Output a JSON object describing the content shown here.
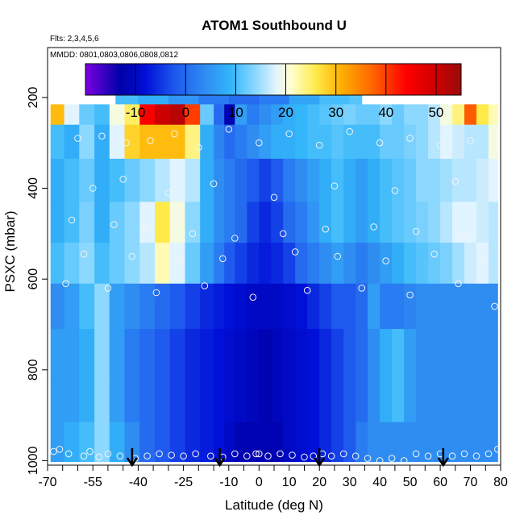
{
  "chart_data": {
    "type": "heatmap",
    "title": "ATOM1 Southbound U",
    "annotations": [
      "Flts: 2,3,4,5,6",
      "MMDD: 0801,0803,0806,0808,0812"
    ],
    "xlabel": "Latitude (deg N)",
    "ylabel": "PSXC (mbar)",
    "xlim": [
      -70,
      80
    ],
    "ylim": [
      1010,
      90
    ],
    "x_ticks": [
      -70,
      -55,
      -40,
      -25,
      -10,
      0,
      10,
      20,
      30,
      40,
      50,
      60,
      70,
      80
    ],
    "x_minor_ticks": [
      -65,
      -60,
      -50,
      -45,
      -35,
      -30,
      -20,
      -15,
      -5,
      5,
      15,
      25,
      35,
      45,
      55,
      65,
      75
    ],
    "y_ticks": [
      200,
      400,
      600,
      800,
      1000
    ],
    "colorbar": {
      "range": [
        -20,
        55
      ],
      "ticks": [
        -10,
        0,
        10,
        20,
        30,
        40,
        50
      ],
      "colors": [
        "#7B00E0",
        "#0000A8",
        "#0010D8",
        "#1E5AEE",
        "#2F8DF2",
        "#33B6FA",
        "#8CD8FF",
        "#E2F4FF",
        "#FFFFD0",
        "#FFEA4A",
        "#FFB000",
        "#FF6A00",
        "#FF0000",
        "#CC0000",
        "#9B0B0B"
      ],
      "stops": [
        -20,
        -13,
        -8,
        -2,
        4,
        9,
        14,
        18,
        21,
        26,
        31,
        37,
        44,
        50,
        55
      ]
    },
    "series": [
      {
        "x": [
          -50,
          -45,
          -35,
          -25,
          -15,
          -5,
          5,
          15,
          25,
          35
        ],
        "y": [
          200,
          200,
          200,
          200,
          200,
          200,
          200,
          200,
          200,
          200
        ],
        "values": [
          9,
          10,
          8,
          5,
          2,
          0,
          2,
          7,
          10,
          11
        ]
      },
      {
        "x": [
          -67,
          -62,
          -57,
          -52,
          -47,
          -42,
          -37,
          -32,
          -27,
          -22,
          -17,
          -13,
          -10,
          -6,
          -2,
          2,
          6,
          10,
          14,
          18,
          22,
          26,
          30,
          34,
          38,
          42,
          46,
          50,
          54,
          58,
          62,
          66,
          70,
          74,
          78
        ],
        "y": [
          230,
          230,
          230,
          230,
          230,
          230,
          230,
          230,
          230,
          230,
          230,
          230,
          230,
          230,
          230,
          230,
          230,
          230,
          230,
          230,
          230,
          230,
          230,
          230,
          230,
          230,
          230,
          230,
          230,
          230,
          230,
          230,
          230,
          230,
          230
        ],
        "values": [
          30,
          18,
          12,
          10,
          20,
          25,
          45,
          50,
          52,
          40,
          12,
          0,
          -12,
          6,
          2,
          4,
          6,
          8,
          9,
          10,
          11,
          12,
          13,
          12,
          12,
          14,
          12,
          14,
          14,
          16,
          20,
          24,
          38,
          26,
          22
        ]
      },
      {
        "x": [
          -67,
          -62,
          -57,
          -52,
          -47,
          -42,
          -37,
          -32,
          -27,
          -22,
          -17,
          -13,
          -10,
          -6,
          -2,
          2,
          6,
          10,
          14,
          18,
          22,
          26,
          30,
          34,
          38,
          42,
          46,
          50,
          54,
          58,
          62,
          66,
          70,
          74,
          78
        ],
        "y": [
          290,
          290,
          290,
          290,
          290,
          290,
          290,
          290,
          290,
          290,
          290,
          290,
          290,
          290,
          290,
          290,
          290,
          290,
          290,
          290,
          290,
          290,
          290,
          290,
          290,
          290,
          290,
          290,
          290,
          290,
          290,
          290,
          290,
          290,
          290
        ],
        "values": [
          10,
          8,
          14,
          8,
          18,
          28,
          30,
          30,
          30,
          24,
          8,
          3,
          0,
          2,
          4,
          6,
          8,
          8,
          9,
          10,
          10,
          11,
          10,
          10,
          10,
          12,
          12,
          13,
          14,
          16,
          18,
          17,
          16,
          16,
          20
        ]
      },
      {
        "x": [
          -67,
          -62,
          -57,
          -52,
          -47,
          -42,
          -37,
          -32,
          -27,
          -22,
          -17,
          -13,
          -10,
          -6,
          -2,
          2,
          6,
          10,
          14,
          18,
          22,
          26,
          30,
          34,
          38,
          42,
          46,
          50,
          54,
          58,
          62,
          66,
          70,
          74,
          78
        ],
        "y": [
          380,
          380,
          380,
          380,
          380,
          380,
          380,
          380,
          380,
          380,
          380,
          380,
          380,
          380,
          380,
          380,
          380,
          380,
          380,
          380,
          380,
          380,
          380,
          380,
          380,
          380,
          380,
          380,
          380,
          380,
          380,
          380,
          380,
          380,
          380
        ],
        "values": [
          8,
          10,
          12,
          8,
          10,
          12,
          14,
          16,
          18,
          16,
          8,
          4,
          2,
          0,
          -2,
          -4,
          -2,
          2,
          4,
          6,
          8,
          10,
          8,
          6,
          8,
          10,
          11,
          12,
          14,
          14,
          15,
          16,
          16,
          17,
          18
        ]
      },
      {
        "x": [
          -67,
          -62,
          -57,
          -52,
          -47,
          -42,
          -37,
          -32,
          -27,
          -22,
          -17,
          -13,
          -10,
          -6,
          -2,
          2,
          6,
          10,
          14,
          18,
          22,
          26,
          30,
          34,
          38,
          42,
          46,
          50,
          54,
          58,
          62,
          66,
          70,
          74,
          78
        ],
        "y": [
          480,
          480,
          480,
          480,
          480,
          480,
          480,
          480,
          480,
          480,
          480,
          480,
          480,
          480,
          480,
          480,
          480,
          480,
          480,
          480,
          480,
          480,
          480,
          480,
          480,
          480,
          480,
          480,
          480,
          480,
          480,
          480,
          480,
          480,
          480
        ],
        "values": [
          8,
          10,
          13,
          8,
          12,
          14,
          18,
          26,
          20,
          14,
          8,
          4,
          2,
          0,
          -4,
          -6,
          -4,
          0,
          2,
          5,
          8,
          10,
          8,
          6,
          8,
          10,
          11,
          12,
          13,
          14,
          16,
          18,
          18,
          17,
          16
        ]
      },
      {
        "x": [
          -67,
          -62,
          -57,
          -52,
          -47,
          -42,
          -37,
          -32,
          -27,
          -22,
          -17,
          -13,
          -10,
          -6,
          -2,
          2,
          6,
          10,
          14,
          18,
          22,
          26,
          30,
          34,
          38,
          42,
          46,
          50,
          54,
          58,
          62,
          66,
          70,
          74,
          78
        ],
        "y": [
          560,
          560,
          560,
          560,
          560,
          560,
          560,
          560,
          560,
          560,
          560,
          560,
          560,
          560,
          560,
          560,
          560,
          560,
          560,
          560,
          560,
          560,
          560,
          560,
          560,
          560,
          560,
          560,
          560,
          560,
          560,
          560,
          560,
          560,
          560
        ],
        "values": [
          10,
          12,
          14,
          10,
          12,
          14,
          16,
          22,
          18,
          12,
          6,
          2,
          -2,
          -4,
          -6,
          -7,
          -6,
          -4,
          0,
          2,
          4,
          6,
          4,
          2,
          4,
          6,
          8,
          10,
          11,
          12,
          13,
          15,
          17,
          18,
          16
        ]
      },
      {
        "x": [
          -67,
          -62,
          -57,
          -52,
          -47,
          -42,
          -37,
          -32,
          -27,
          -22,
          -17,
          -13,
          -10,
          -6,
          -2,
          2,
          6,
          10,
          14,
          18,
          22,
          26,
          30,
          34,
          38,
          42,
          46,
          50,
          54,
          58,
          62,
          66,
          70,
          74,
          78
        ],
        "y": [
          660,
          660,
          660,
          660,
          660,
          660,
          660,
          660,
          660,
          660,
          660,
          660,
          660,
          660,
          660,
          660,
          660,
          660,
          660,
          660,
          660,
          660,
          660,
          660,
          660,
          660,
          660,
          660,
          660,
          660,
          660,
          660,
          660,
          660,
          660
        ],
        "values": [
          4,
          6,
          10,
          14,
          6,
          4,
          2,
          0,
          -2,
          -4,
          -6,
          -7,
          -8,
          -9,
          -10,
          -10,
          -10,
          -9,
          -8,
          -6,
          -4,
          -2,
          -2,
          0,
          6,
          2,
          2,
          3,
          4,
          4,
          4,
          4,
          4,
          4,
          4
        ]
      },
      {
        "x": [
          -67,
          -62,
          -57,
          -52,
          -47,
          -42,
          -37,
          -32,
          -27,
          -22,
          -17,
          -13,
          -10,
          -6,
          -2,
          2,
          6,
          10,
          14,
          18,
          22,
          26,
          30,
          34,
          38,
          42,
          46,
          50,
          54,
          58,
          62,
          66,
          70,
          74,
          78
        ],
        "y": [
          760,
          760,
          760,
          760,
          760,
          760,
          760,
          760,
          760,
          760,
          760,
          760,
          760,
          760,
          760,
          760,
          760,
          760,
          760,
          760,
          760,
          760,
          760,
          760,
          760,
          760,
          760,
          760,
          760,
          760,
          760,
          760,
          760,
          760,
          760
        ],
        "values": [
          6,
          6,
          8,
          14,
          6,
          2,
          0,
          -2,
          -4,
          -6,
          -7,
          -8,
          -9,
          -10,
          -11,
          -12,
          -11,
          -10,
          -9,
          -8,
          -6,
          -4,
          -2,
          0,
          4,
          8,
          10,
          6,
          4,
          4,
          4,
          4,
          4,
          4,
          4
        ]
      },
      {
        "x": [
          -67,
          -62,
          -57,
          -52,
          -47,
          -42,
          -37,
          -32,
          -27,
          -22,
          -17,
          -13,
          -10,
          -6,
          -2,
          2,
          6,
          10,
          14,
          18,
          22,
          26,
          30,
          34,
          38,
          42,
          46,
          50,
          54,
          58,
          62,
          66,
          70,
          74,
          78
        ],
        "y": [
          870,
          870,
          870,
          870,
          870,
          870,
          870,
          870,
          870,
          870,
          870,
          870,
          870,
          870,
          870,
          870,
          870,
          870,
          870,
          870,
          870,
          870,
          870,
          870,
          870,
          870,
          870,
          870,
          870,
          870,
          870,
          870,
          870,
          870,
          870
        ],
        "values": [
          6,
          6,
          8,
          14,
          6,
          2,
          0,
          -2,
          -4,
          -6,
          -7,
          -8,
          -9,
          -10,
          -11,
          -12,
          -11,
          -10,
          -9,
          -8,
          -6,
          -4,
          -2,
          0,
          4,
          8,
          10,
          6,
          4,
          4,
          4,
          4,
          4,
          4,
          4
        ]
      },
      {
        "x": [
          -67,
          -62,
          -57,
          -52,
          -47,
          -42,
          -37,
          -32,
          -27,
          -22,
          -17,
          -13,
          -10,
          -6,
          -2,
          2,
          6,
          10,
          14,
          18,
          22,
          26,
          30,
          34,
          38,
          42,
          46,
          50,
          54,
          58,
          62,
          66,
          70,
          74,
          78
        ],
        "y": [
          960,
          960,
          960,
          960,
          960,
          960,
          960,
          960,
          960,
          960,
          960,
          960,
          960,
          960,
          960,
          960,
          960,
          960,
          960,
          960,
          960,
          960,
          960,
          960,
          960,
          960,
          960,
          960,
          960,
          960,
          960,
          960,
          960,
          960,
          960
        ],
        "values": [
          6,
          8,
          10,
          14,
          8,
          4,
          0,
          -2,
          -4,
          -6,
          -7,
          -8,
          -10,
          -12,
          -12,
          -12,
          -12,
          -10,
          -9,
          -8,
          -6,
          -4,
          -2,
          2,
          4,
          4,
          4,
          4,
          4,
          4,
          4,
          4,
          4,
          4,
          4
        ]
      }
    ],
    "sample_points": {
      "lat": [
        -68,
        -66,
        -63,
        -58,
        -56,
        -53,
        -50,
        -46,
        -41,
        -37,
        -33,
        -29,
        -25,
        -21,
        -16,
        -12,
        -8,
        -4,
        -1,
        0,
        3,
        7,
        11,
        15,
        18,
        21,
        24,
        28,
        32,
        36,
        40,
        44,
        48,
        52,
        56,
        60,
        64,
        68,
        72,
        76,
        79,
        -60,
        -52,
        -44,
        -36,
        -28,
        -20,
        -10,
        0,
        10,
        20,
        30,
        40,
        50,
        60,
        70,
        -55,
        -45,
        -30,
        -15,
        5,
        25,
        45,
        65,
        -62,
        -48,
        -38,
        -22,
        -8,
        8,
        22,
        38,
        52,
        68,
        -58,
        -42,
        -26,
        -12,
        12,
        26,
        42,
        58,
        74,
        -64,
        -50,
        -34,
        -18,
        -2,
        16,
        34,
        50,
        66,
        78
      ],
      "p": [
        980,
        975,
        985,
        990,
        980,
        992,
        985,
        990,
        995,
        990,
        985,
        988,
        990,
        985,
        990,
        992,
        985,
        990,
        985,
        985,
        990,
        985,
        988,
        992,
        990,
        985,
        990,
        985,
        990,
        995,
        1000,
        995,
        1000,
        985,
        990,
        985,
        990,
        985,
        990,
        985,
        975,
        290,
        285,
        300,
        295,
        280,
        310,
        270,
        300,
        280,
        305,
        275,
        300,
        290,
        305,
        295,
        400,
        380,
        410,
        390,
        420,
        395,
        405,
        385,
        470,
        480,
        490,
        500,
        510,
        500,
        490,
        485,
        495,
        505,
        545,
        550,
        560,
        555,
        540,
        550,
        560,
        545,
        555,
        610,
        620,
        630,
        615,
        640,
        625,
        620,
        635,
        610,
        660
      ]
    },
    "arrows_x": [
      -42,
      -13,
      20,
      61
    ]
  }
}
